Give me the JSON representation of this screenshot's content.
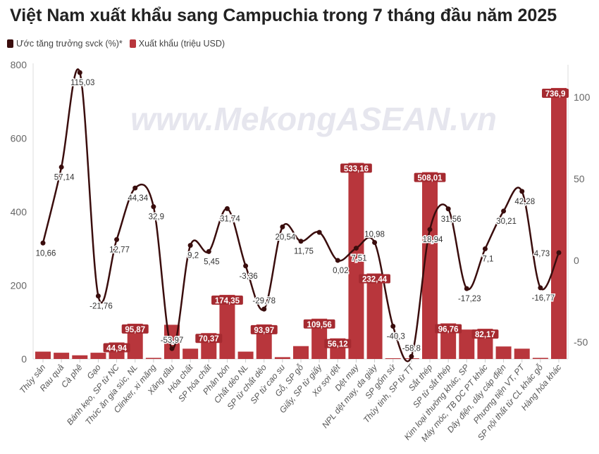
{
  "title": "Việt Nam xuất khẩu sang Campuchia trong 7 tháng đầu năm 2025",
  "watermark": "www.MekongASEAN.vn",
  "colors": {
    "line": "#3a0d0d",
    "bar": "#b8363c",
    "bar_label_bg": "#a52a30"
  },
  "chart_data": {
    "type": "bar+line",
    "title": "Việt Nam xuất khẩu sang Campuchia trong 7 tháng đầu năm 2025",
    "legend": [
      "Ước tăng trưởng svck (%)*",
      "Xuất khẩu (triệu USD)"
    ],
    "legend_position": "top-left",
    "categories": [
      "Thủy sản",
      "Rau quả",
      "Cà phê",
      "Gạo",
      "Bánh kẹo, SP từ NC",
      "Thức ăn gia súc, NL",
      "Clinker, xi măng",
      "Xăng dầu",
      "Hóa chất",
      "SP hóa chất",
      "Phân bón",
      "Chất dẻo NL",
      "SP từ chất dẻo",
      "SP từ cao su",
      "Gỗ, SP gỗ",
      "Giấy, SP từ giấy",
      "Xơ sợi dệt",
      "Dệt may",
      "NPL dệt may, da giày",
      "SP gốm sứ",
      "Thủy tinh, SP từ TT",
      "Sắt thép",
      "SP từ sắt thép",
      "Kim loại thường khác, SP",
      "Máy móc, TB DC PT khác",
      "Dây điện, dây cáp điện",
      "Phương tiện VT, PT",
      "SP nội thất từ CL khác gỗ",
      "Hàng hóa khác"
    ],
    "series": [
      {
        "name": "Xuất khẩu (triệu USD)",
        "axis": "left",
        "values": [
          20,
          17,
          10,
          17,
          44.94,
          95.87,
          3,
          93,
          28,
          70.37,
          174.35,
          20,
          93.97,
          5,
          35,
          109.56,
          56.12,
          533.16,
          232.44,
          2,
          2,
          508.01,
          96.76,
          80,
          82.17,
          34,
          28,
          3,
          736.9
        ],
        "labels": [
          null,
          null,
          null,
          null,
          "44,94",
          "95,87",
          null,
          null,
          null,
          "70,37",
          "174,35",
          null,
          "93,97",
          null,
          null,
          "109,56",
          "56,12",
          "533,16",
          "232,44",
          null,
          null,
          "508,01",
          "96,76",
          null,
          "82,17",
          null,
          null,
          null,
          "736,9"
        ]
      },
      {
        "name": "Ước tăng trưởng svck (%)*",
        "axis": "right",
        "values": [
          10.66,
          57.14,
          115.03,
          -21.76,
          12.77,
          44.34,
          32.9,
          -53.97,
          9.2,
          5.45,
          31.74,
          -3.36,
          -29.78,
          20.54,
          11.75,
          17.2,
          0.02,
          7.51,
          10.98,
          -40.3,
          -58.8,
          18.94,
          31.56,
          -17.23,
          7.1,
          30.21,
          42.28,
          -16.77,
          4.73
        ],
        "labels": [
          "10,66",
          "57,14",
          "115,03",
          "-21,76",
          "12,77",
          "44,34",
          "32,9",
          "-53,97",
          "9,2",
          "5,45",
          "31,74",
          "-3,36",
          "-29,78",
          "20,54",
          "11,75",
          null,
          "0,02",
          "7,51",
          "10,98",
          "-40,3",
          "-58,8",
          "18,94",
          "31,56",
          "-17,23",
          "7,1",
          "30,21",
          "42,28",
          "-16,77",
          "4,73"
        ]
      }
    ],
    "y_left": {
      "range": [
        0,
        800
      ],
      "ticks": [
        "0",
        "200",
        "400",
        "600",
        "800"
      ]
    },
    "y_right": {
      "range": [
        -60,
        110
      ],
      "ticks": [
        "-50",
        "0",
        "50",
        "100"
      ]
    },
    "grid": false
  }
}
